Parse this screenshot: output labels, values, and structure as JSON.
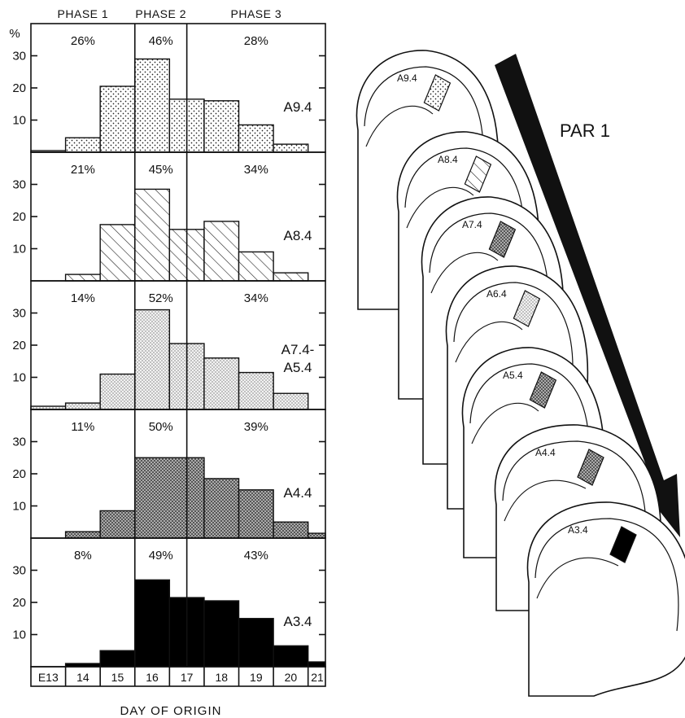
{
  "chart_data": {
    "type": "bar",
    "phases": [
      "PHASE 1",
      "PHASE 2",
      "PHASE 3"
    ],
    "y_unit": "%",
    "y_ticks": [
      10,
      20,
      30
    ],
    "ylim": [
      0,
      40
    ],
    "x_ticks": [
      "E13",
      "14",
      "15",
      "16",
      "17",
      "18",
      "19",
      "20",
      "21"
    ],
    "x_range": [
      13,
      21.5
    ],
    "xlabel": "DAY OF ORIGIN",
    "phase_bounds": [
      16,
      17.5
    ],
    "series": [
      {
        "name": "A9.4",
        "fill": "dots",
        "phase_percentages": [
          "26%",
          "46%",
          "28%"
        ],
        "bins": [
          {
            "from": 13.0,
            "to": 14.0,
            "value": 0.5
          },
          {
            "from": 14.0,
            "to": 15.0,
            "value": 4.5
          },
          {
            "from": 15.0,
            "to": 16.0,
            "value": 20.5
          },
          {
            "from": 16.0,
            "to": 17.0,
            "value": 29
          },
          {
            "from": 17.0,
            "to": 18.0,
            "value": 16.5
          },
          {
            "from": 18.0,
            "to": 19.0,
            "value": 16
          },
          {
            "from": 19.0,
            "to": 20.0,
            "value": 8.5
          },
          {
            "from": 20.0,
            "to": 21.0,
            "value": 2.5
          }
        ]
      },
      {
        "name": "A8.4",
        "fill": "hatch",
        "phase_percentages": [
          "21%",
          "45%",
          "34%"
        ],
        "bins": [
          {
            "from": 14.0,
            "to": 15.0,
            "value": 2
          },
          {
            "from": 15.0,
            "to": 16.0,
            "value": 17.5
          },
          {
            "from": 16.0,
            "to": 17.0,
            "value": 28.5
          },
          {
            "from": 17.0,
            "to": 18.0,
            "value": 16
          },
          {
            "from": 18.0,
            "to": 19.0,
            "value": 18.5
          },
          {
            "from": 19.0,
            "to": 20.0,
            "value": 9
          },
          {
            "from": 20.0,
            "to": 21.0,
            "value": 2.5
          }
        ]
      },
      {
        "name": "A7.4-\nA5.4",
        "fill": "fine-dots",
        "phase_percentages": [
          "14%",
          "52%",
          "34%"
        ],
        "bins": [
          {
            "from": 13.0,
            "to": 14.0,
            "value": 1
          },
          {
            "from": 14.0,
            "to": 15.0,
            "value": 2
          },
          {
            "from": 15.0,
            "to": 16.0,
            "value": 11
          },
          {
            "from": 16.0,
            "to": 17.0,
            "value": 31
          },
          {
            "from": 17.0,
            "to": 18.0,
            "value": 20.5
          },
          {
            "from": 18.0,
            "to": 19.0,
            "value": 16
          },
          {
            "from": 19.0,
            "to": 20.0,
            "value": 11.5
          },
          {
            "from": 20.0,
            "to": 21.0,
            "value": 5
          }
        ]
      },
      {
        "name": "A4.4",
        "fill": "crosshatch",
        "phase_percentages": [
          "11%",
          "50%",
          "39%"
        ],
        "bins": [
          {
            "from": 14.0,
            "to": 15.0,
            "value": 2
          },
          {
            "from": 15.0,
            "to": 16.0,
            "value": 8.5
          },
          {
            "from": 16.0,
            "to": 18.0,
            "value": 25
          },
          {
            "from": 18.0,
            "to": 19.0,
            "value": 18.5
          },
          {
            "from": 19.0,
            "to": 20.0,
            "value": 15
          },
          {
            "from": 20.0,
            "to": 21.0,
            "value": 5
          },
          {
            "from": 21.0,
            "to": 21.5,
            "value": 1.5
          }
        ]
      },
      {
        "name": "A3.4",
        "fill": "solid",
        "phase_percentages": [
          "8%",
          "49%",
          "43%"
        ],
        "bins": [
          {
            "from": 14.0,
            "to": 15.0,
            "value": 1
          },
          {
            "from": 15.0,
            "to": 16.0,
            "value": 5
          },
          {
            "from": 16.0,
            "to": 17.0,
            "value": 27
          },
          {
            "from": 17.0,
            "to": 18.0,
            "value": 21.5
          },
          {
            "from": 18.0,
            "to": 19.0,
            "value": 20.5
          },
          {
            "from": 19.0,
            "to": 20.0,
            "value": 15
          },
          {
            "from": 20.0,
            "to": 21.0,
            "value": 6.5
          },
          {
            "from": 21.0,
            "to": 21.5,
            "value": 1.5
          }
        ]
      }
    ]
  },
  "brain_sections": {
    "labels": [
      "A9.4",
      "A8.4",
      "A7.4",
      "A6.4",
      "A5.4",
      "A4.4",
      "A3.4"
    ],
    "arrow_label": "PAR 1"
  }
}
